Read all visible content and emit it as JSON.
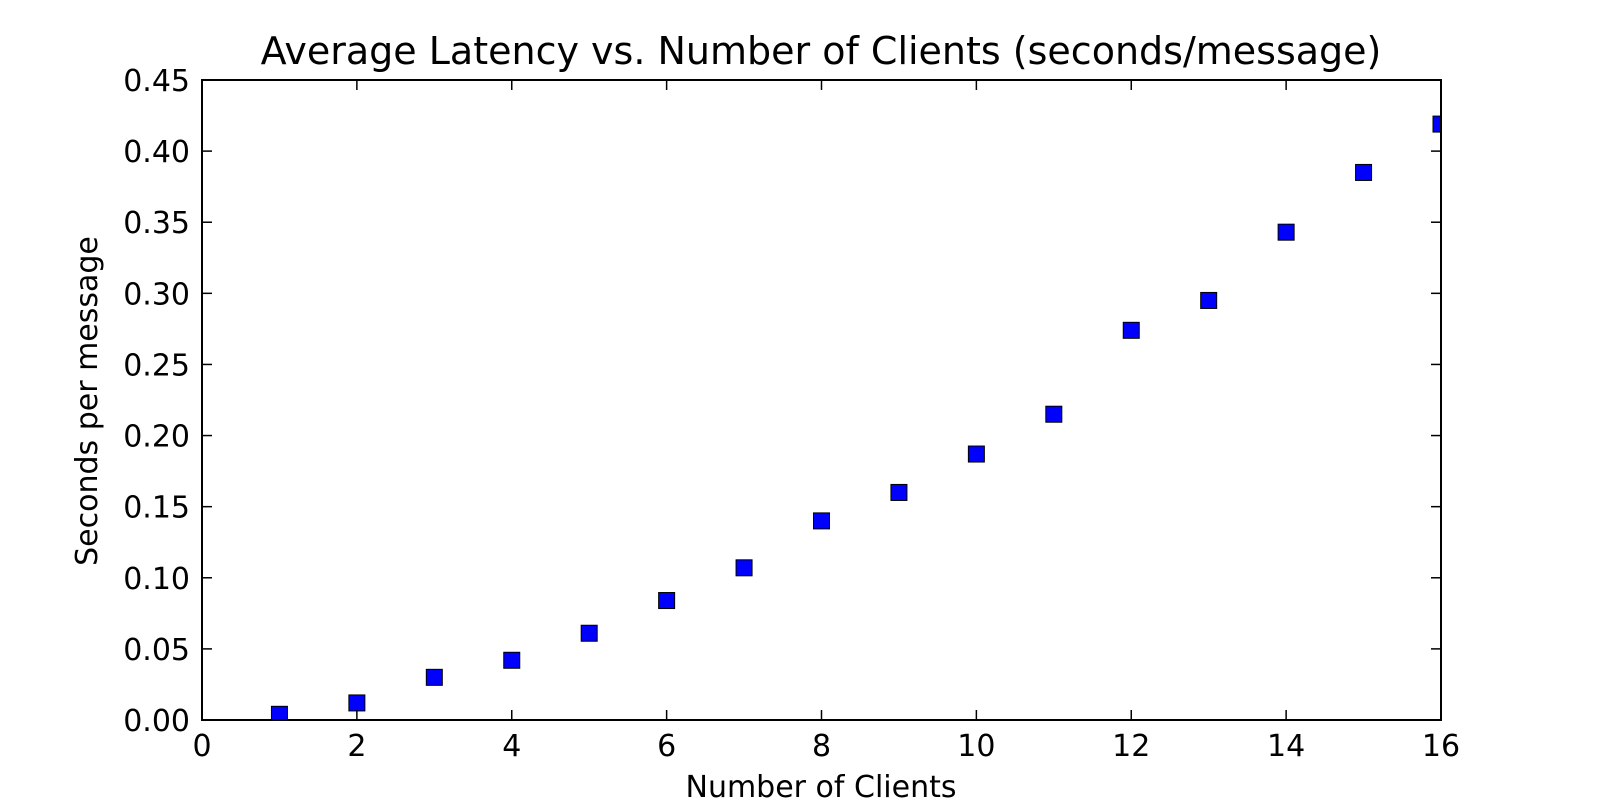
{
  "chart_data": {
    "type": "scatter",
    "title": "Average Latency vs. Number of Clients (seconds/message)",
    "xlabel": "Number of Clients",
    "ylabel": "Seconds per message",
    "xlim": [
      0,
      16
    ],
    "ylim": [
      0,
      0.45
    ],
    "xticks": [
      0,
      2,
      4,
      6,
      8,
      10,
      12,
      14,
      16
    ],
    "xtick_labels": [
      "0",
      "2",
      "4",
      "6",
      "8",
      "10",
      "12",
      "14",
      "16"
    ],
    "yticks": [
      0,
      0.05,
      0.1,
      0.15,
      0.2,
      0.25,
      0.3,
      0.35,
      0.4,
      0.45
    ],
    "ytick_labels": [
      "0.00",
      "0.05",
      "0.10",
      "0.15",
      "0.20",
      "0.25",
      "0.30",
      "0.35",
      "0.40",
      "0.45"
    ],
    "grid": false,
    "marker": "square",
    "marker_color": "#0000ff",
    "series": [
      {
        "x": [
          1,
          2,
          3,
          4,
          5,
          6,
          7,
          8,
          9,
          10,
          11,
          12,
          13,
          14,
          15,
          16
        ],
        "y": [
          0.004,
          0.012,
          0.03,
          0.042,
          0.061,
          0.084,
          0.107,
          0.14,
          0.16,
          0.187,
          0.215,
          0.274,
          0.295,
          0.343,
          0.385,
          0.419
        ]
      }
    ]
  }
}
